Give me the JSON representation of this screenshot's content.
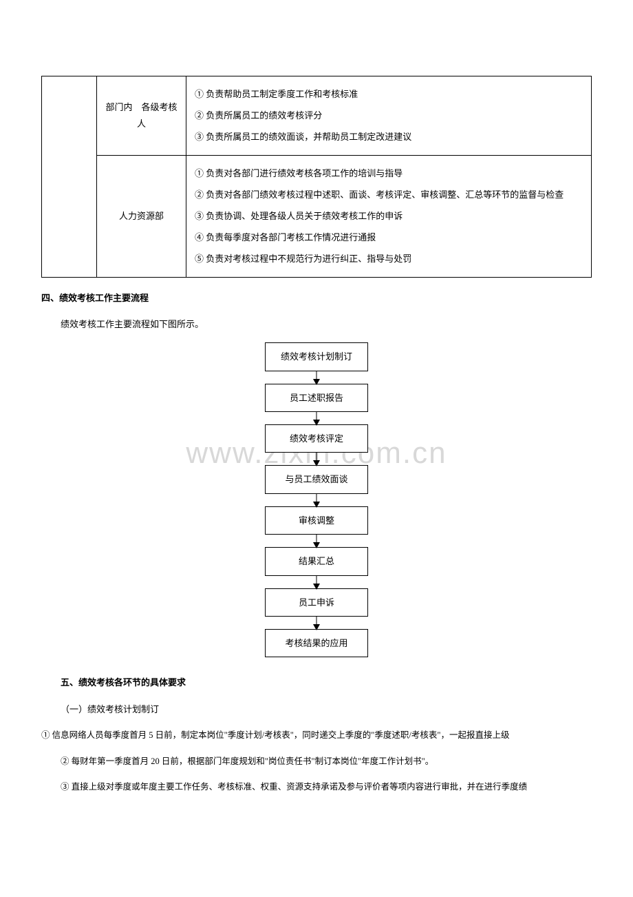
{
  "table": {
    "row1": {
      "col2": "部门内　各级考核人",
      "col3_line1": "① 负责帮助员工制定季度工作和考核标准",
      "col3_line2": "② 负责所属员工的绩效考核评分",
      "col3_line3": "③ 负责所属员工的绩效面谈，并帮助员工制定改进建议"
    },
    "row2": {
      "col2": "人力资源部",
      "col3_line1": "① 负责对各部门进行绩效考核各项工作的培训与指导",
      "col3_line2": "② 负责对各部门绩效考核过程中述职、面谈、考核评定、审核调整、汇总等环节的监督与检查",
      "col3_line3": "③ 负责协调、处理各级人员关于绩效考核工作的申诉",
      "col3_line4": "④ 负责每季度对各部门考核工作情况进行通报",
      "col3_line5": "⑤ 负责对考核过程中不规范行为进行纠正、指导与处罚"
    }
  },
  "section4_title": "四、绩效考核工作主要流程",
  "section4_intro": "绩效考核工作主要流程如下图所示。",
  "flowchart": {
    "nodes": [
      "绩效考核计划制订",
      "员工述职报告",
      "绩效考核评定",
      "与员工绩效面谈",
      "审核调整",
      "结果汇总",
      "员工申诉",
      "考核结果的应用"
    ],
    "box_border_color": "#000000",
    "box_bg_color": "#ffffff",
    "arrow_color": "#000000"
  },
  "section5_title": "五、绩效考核各环节的具体要求",
  "section5_sub1": "（一）绩效考核计划制订",
  "section5_item1": "① 信息网络人员每季度首月 5 日前，制定本岗位\"季度计划/考核表\"，同时递交上季度的\"季度述职/考核表\"，一起报直接上级",
  "section5_item2": "② 每财年第一季度首月 20 日前，根据部门年度规划和\"岗位责任书\"制订本岗位\"年度工作计划书\"。",
  "section5_item3": "③ 直接上级对季度或年度主要工作任务、考核标准、权重、资源支持承诺及参与评价者等项内容进行审批，并在进行季度绩",
  "watermark": "www.zixin.com.cn"
}
